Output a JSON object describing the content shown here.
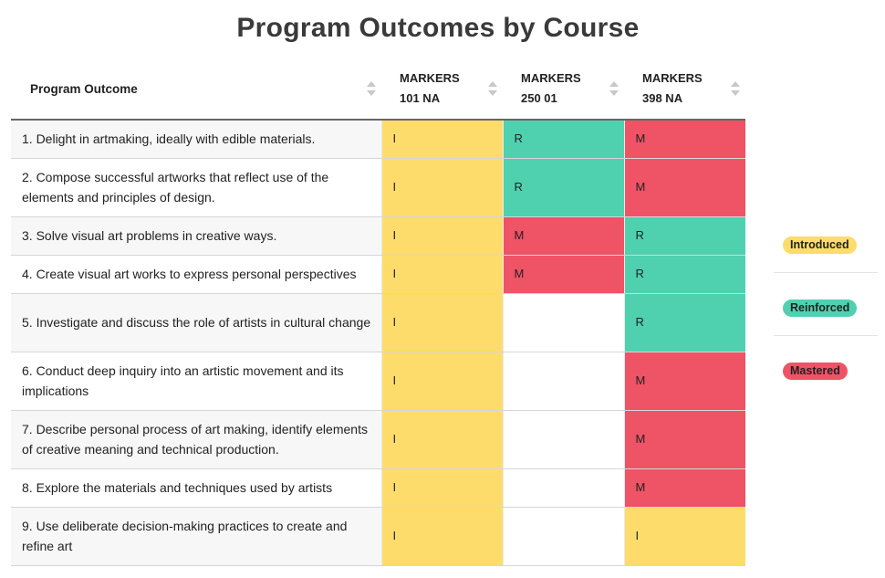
{
  "title": "Program Outcomes by Course",
  "colors": {
    "I": "#fddc6b",
    "R": "#4fd1b0",
    "M": "#ef5366"
  },
  "table": {
    "header": {
      "outcome": "Program Outcome",
      "courses": [
        {
          "line1": "MARKERS",
          "line2": "101 NA"
        },
        {
          "line1": "MARKERS",
          "line2": "250 01"
        },
        {
          "line1": "MARKERS",
          "line2": "398 NA"
        }
      ]
    },
    "rows": [
      {
        "outcome": "1. Delight in artmaking, ideally with edible materials.",
        "cells": [
          "I",
          "R",
          "M"
        ]
      },
      {
        "outcome": "2. Compose successful artworks that reflect use of the elements and principles of design.",
        "cells": [
          "I",
          "R",
          "M"
        ]
      },
      {
        "outcome": "3. Solve visual art problems in creative ways.",
        "cells": [
          "I",
          "M",
          "R"
        ]
      },
      {
        "outcome": "4. Create visual art works to express personal perspectives",
        "cells": [
          "I",
          "M",
          "R"
        ]
      },
      {
        "outcome": "5. Investigate and discuss the role of artists in cultural change",
        "cells": [
          "I",
          "",
          "R"
        ]
      },
      {
        "outcome": "6. Conduct deep inquiry into an artistic movement and its implications",
        "cells": [
          "I",
          "",
          "M"
        ]
      },
      {
        "outcome": "7. Describe personal process of art making, identify elements of creative meaning and technical production.",
        "cells": [
          "I",
          "",
          "M"
        ]
      },
      {
        "outcome": "8. Explore the materials and techniques used by artists",
        "cells": [
          "I",
          "",
          "M"
        ]
      },
      {
        "outcome": "9. Use deliberate decision-making practices to create and refine art",
        "cells": [
          "I",
          "",
          "I"
        ]
      }
    ]
  },
  "legend": [
    {
      "label": "Introduced",
      "key": "I"
    },
    {
      "label": "Reinforced",
      "key": "R"
    },
    {
      "label": "Mastered",
      "key": "M"
    }
  ]
}
